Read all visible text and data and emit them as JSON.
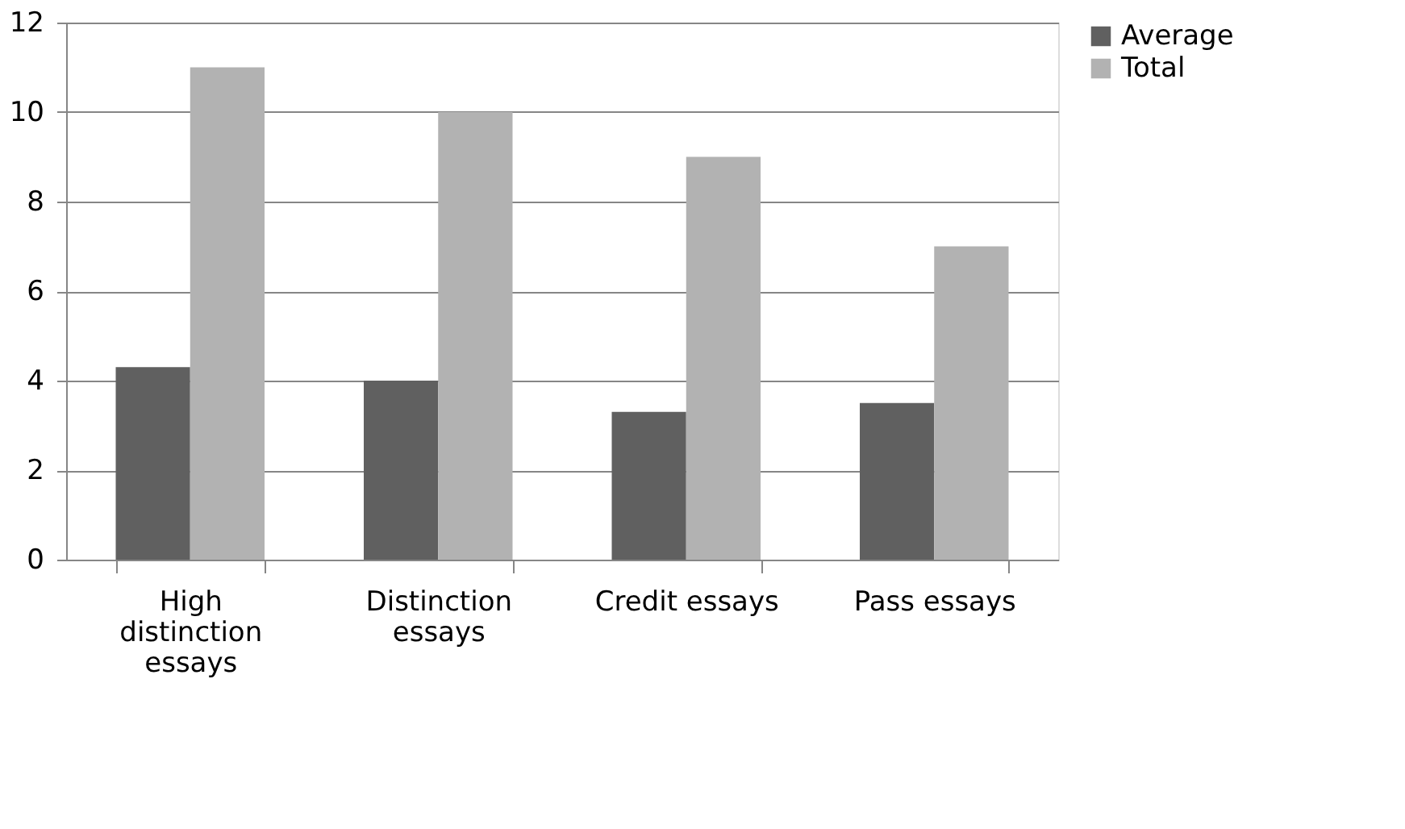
{
  "chart_data": {
    "type": "bar",
    "categories": [
      "High distinction essays",
      "Distinction essays",
      "Credit essays",
      "Pass essays"
    ],
    "series": [
      {
        "name": "Average",
        "color": "#606060",
        "values": [
          4.3,
          4.0,
          3.3,
          3.5
        ]
      },
      {
        "name": "Total",
        "color": "#b2b2b2",
        "values": [
          11,
          10,
          9,
          7
        ]
      }
    ],
    "ylim": [
      0,
      12
    ],
    "yticks": [
      0,
      2,
      4,
      6,
      8,
      10,
      12
    ],
    "grid": "y",
    "legend": "right"
  }
}
